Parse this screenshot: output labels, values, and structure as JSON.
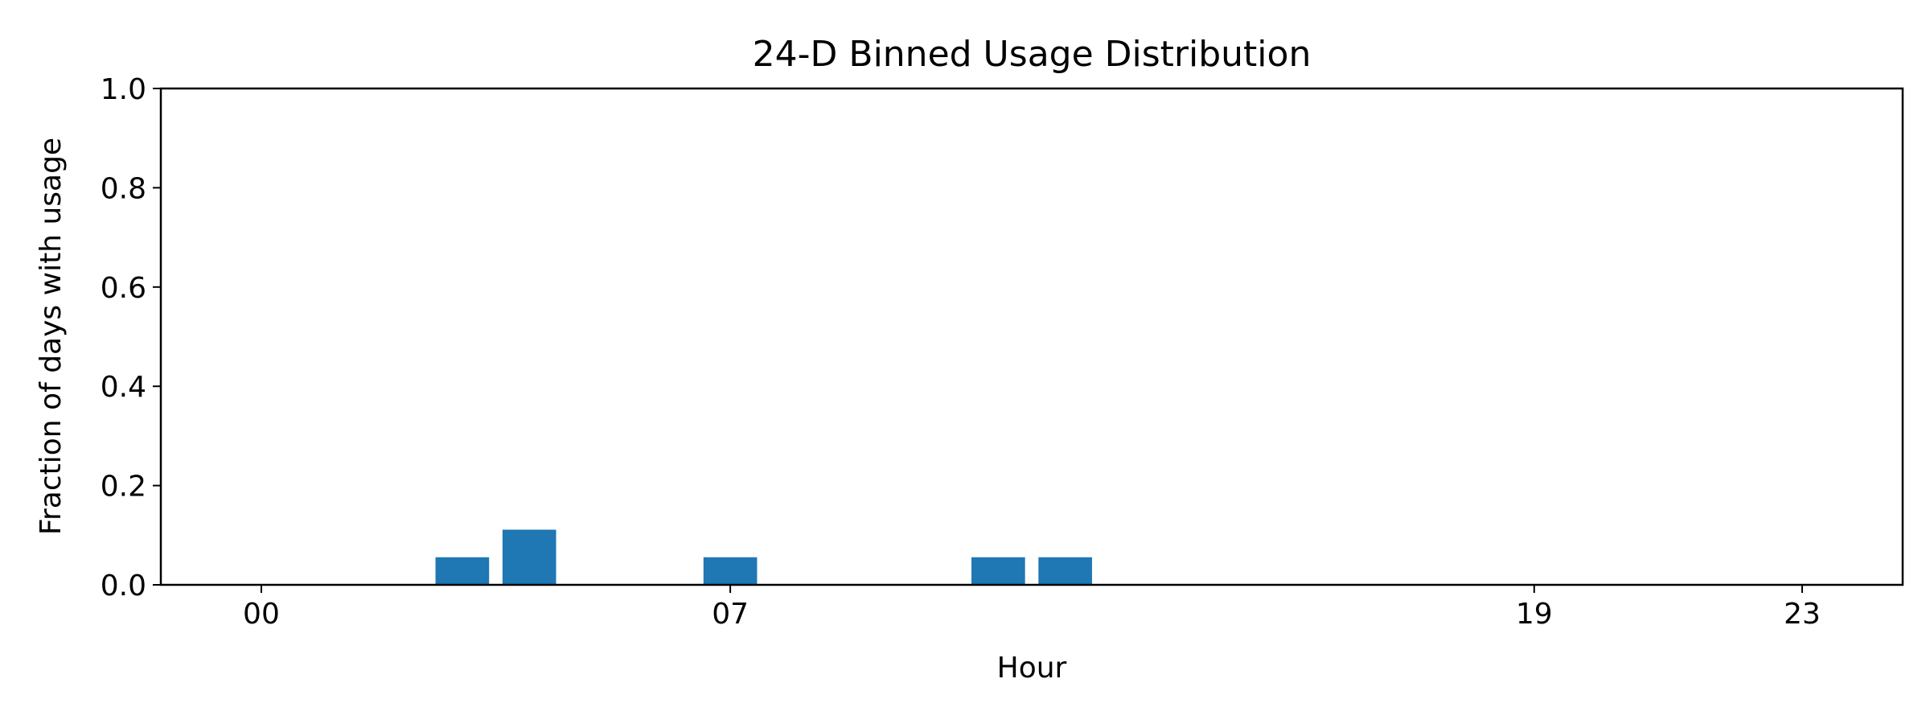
{
  "chart_data": {
    "type": "bar",
    "title": "24-D Binned Usage Distribution",
    "xlabel": "Hour",
    "ylabel": "Fraction of days with usage",
    "x": [
      0,
      1,
      2,
      3,
      4,
      5,
      6,
      7,
      8,
      9,
      10,
      11,
      12,
      13,
      14,
      15,
      16,
      17,
      18,
      19,
      20,
      21,
      22,
      23
    ],
    "values": [
      0,
      0,
      0,
      0.0556,
      0.1111,
      0,
      0,
      0.0556,
      0,
      0,
      0,
      0.0556,
      0.0556,
      0,
      0,
      0,
      0,
      0,
      0,
      0,
      0,
      0,
      0,
      0
    ],
    "xlim": [
      -1.5,
      24.5
    ],
    "ylim": [
      0,
      1
    ],
    "xticks": [
      {
        "value": 0,
        "label": "00"
      },
      {
        "value": 7,
        "label": "07"
      },
      {
        "value": 19,
        "label": "19"
      },
      {
        "value": 23,
        "label": "23"
      }
    ],
    "yticks": [
      {
        "value": 0.0,
        "label": "0.0"
      },
      {
        "value": 0.2,
        "label": "0.2"
      },
      {
        "value": 0.4,
        "label": "0.4"
      },
      {
        "value": 0.6,
        "label": "0.6"
      },
      {
        "value": 0.8,
        "label": "0.8"
      },
      {
        "value": 1.0,
        "label": "1.0"
      }
    ],
    "bar_color": "#1f77b4",
    "grid": false,
    "legend": "none"
  }
}
